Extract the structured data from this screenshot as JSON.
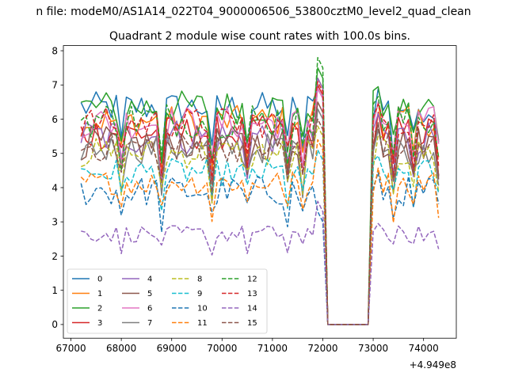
{
  "figure": {
    "suptitle": "n file: modeM0/AS1A14_022T04_9000006506_53800cztM0_level2_quad_clean",
    "offset_text": "+4.949e8"
  },
  "chart_data": {
    "type": "line",
    "title": "Quadrant 2 module wise count rates with 100.0s bins.",
    "xlabel": "",
    "ylabel": "",
    "xlim": [
      66850,
      74650
    ],
    "ylim": [
      -0.4,
      8.15
    ],
    "xticks": [
      67000,
      68000,
      69000,
      70000,
      71000,
      72000,
      73000,
      74000
    ],
    "xtick_labels": [
      "67000",
      "68000",
      "69000",
      "70000",
      "71000",
      "72000",
      "73000",
      "74000"
    ],
    "yticks": [
      0,
      1,
      2,
      3,
      4,
      5,
      6,
      7,
      8
    ],
    "ytick_labels": [
      "0",
      "1",
      "2",
      "3",
      "4",
      "5",
      "6",
      "7",
      "8"
    ],
    "x_start": 67200,
    "x_step": 100,
    "gap": {
      "start": 72100,
      "end": 72900,
      "value": 0
    },
    "segment1_end": 72000,
    "segment2": {
      "start": 73000,
      "end": 74300
    },
    "legend": {
      "location": "lower-left",
      "ncol": 4
    },
    "series": [
      {
        "name": "0",
        "color": "#1f77b4",
        "dash": "solid",
        "base": 6.35,
        "amp": 0.45,
        "spike": 6.9
      },
      {
        "name": "1",
        "color": "#ff7f0e",
        "dash": "solid",
        "base": 5.95,
        "amp": 0.45,
        "spike": 7.2
      },
      {
        "name": "2",
        "color": "#2ca02c",
        "dash": "solid",
        "base": 6.35,
        "amp": 0.5,
        "spike": 7.5
      },
      {
        "name": "3",
        "color": "#d62728",
        "dash": "solid",
        "base": 5.6,
        "amp": 0.5,
        "spike": 7.0
      },
      {
        "name": "4",
        "color": "#9467bd",
        "dash": "solid",
        "base": 5.5,
        "amp": 0.55,
        "spike": 7.2
      },
      {
        "name": "5",
        "color": "#8c564b",
        "dash": "solid",
        "base": 5.3,
        "amp": 0.5,
        "spike": 6.5
      },
      {
        "name": "6",
        "color": "#e377c2",
        "dash": "solid",
        "base": 5.9,
        "amp": 0.5,
        "spike": 6.9
      },
      {
        "name": "7",
        "color": "#7f7f7f",
        "dash": "solid",
        "base": 5.15,
        "amp": 0.45,
        "spike": 6.3
      },
      {
        "name": "8",
        "color": "#bcbd22",
        "dash": "dashed",
        "base": 5.0,
        "amp": 0.45,
        "spike": 5.8
      },
      {
        "name": "9",
        "color": "#17becf",
        "dash": "dashed",
        "base": 4.45,
        "amp": 0.4,
        "spike": 5.1
      },
      {
        "name": "10",
        "color": "#1f77b4",
        "dash": "dashed",
        "base": 3.9,
        "amp": 0.45,
        "spike": 3.3
      },
      {
        "name": "11",
        "color": "#ff7f0e",
        "dash": "dashed",
        "base": 4.15,
        "amp": 0.35,
        "spike": 5.4
      },
      {
        "name": "12",
        "color": "#2ca02c",
        "dash": "dashed",
        "base": 6.0,
        "amp": 0.55,
        "spike": 7.8
      },
      {
        "name": "13",
        "color": "#d62728",
        "dash": "dashed",
        "base": 5.9,
        "amp": 0.45,
        "spike": 7.1
      },
      {
        "name": "14",
        "color": "#9467bd",
        "dash": "dashed",
        "base": 2.65,
        "amp": 0.25,
        "spike": 3.6
      },
      {
        "name": "15",
        "color": "#8c564b",
        "dash": "dashed",
        "base": 5.2,
        "amp": 0.45,
        "spike": 6.0
      }
    ]
  }
}
